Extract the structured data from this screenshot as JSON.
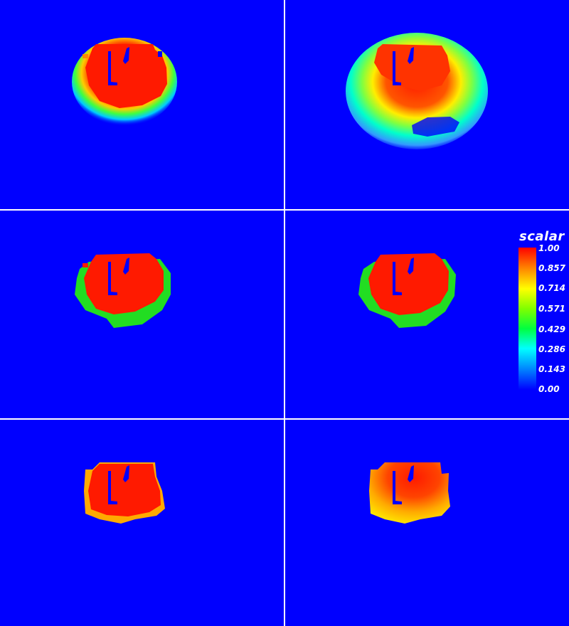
{
  "legend": {
    "title": "scalar",
    "ticks": [
      "1.00",
      "0.857",
      "0.714",
      "0.571",
      "0.429",
      "0.286",
      "0.143",
      "0.00"
    ]
  },
  "colors": {
    "background": "#0000ff",
    "red": "#ff1a00",
    "green": "#22dd22",
    "yellow": "#ffdd00",
    "divider": "#ffffff"
  },
  "panels": [
    {
      "id": "top-left",
      "style": "gradient-narrow"
    },
    {
      "id": "top-right",
      "style": "gradient-wide"
    },
    {
      "id": "middle-left",
      "style": "green-rim"
    },
    {
      "id": "middle-right",
      "style": "green-rim"
    },
    {
      "id": "bottom-left",
      "style": "orange-rim"
    },
    {
      "id": "bottom-right",
      "style": "orange-gradient"
    }
  ]
}
